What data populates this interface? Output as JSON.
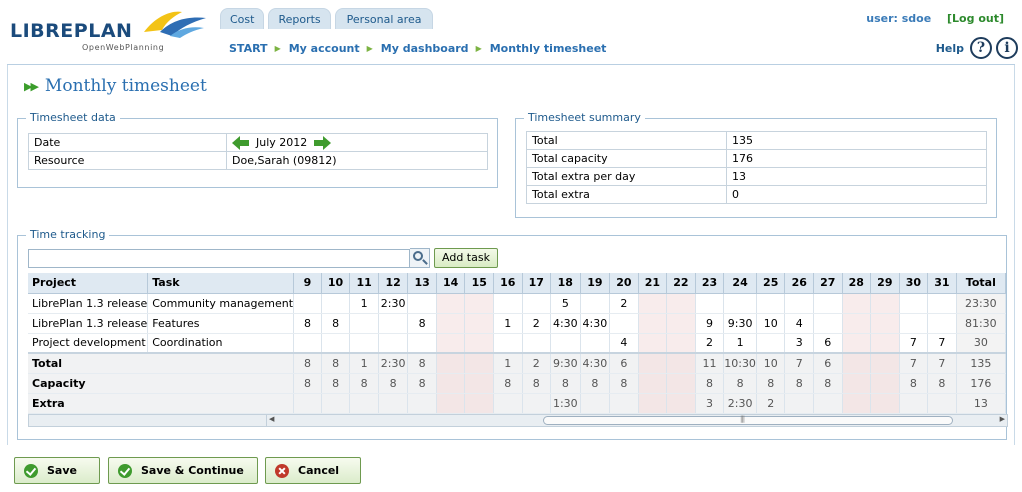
{
  "brand": {
    "name_libre": "LIBRE",
    "name_plan": "PLAN",
    "tagline": "OpenWebPlanning"
  },
  "tabs": [
    {
      "label": "Cost"
    },
    {
      "label": "Reports"
    },
    {
      "label": "Personal area"
    }
  ],
  "user": {
    "label": "user: sdoe",
    "logout": "[Log out]"
  },
  "breadcrumbs": [
    "START",
    "My account",
    "My dashboard",
    "Monthly timesheet"
  ],
  "help": {
    "label": "Help",
    "help_glyph": "?",
    "info_glyph": "i"
  },
  "page": {
    "title": "Monthly timesheet"
  },
  "timesheet_data": {
    "legend": "Timesheet data",
    "date_label": "Date",
    "date_value": "July 2012",
    "resource_label": "Resource",
    "resource_value": "Doe,Sarah (09812)"
  },
  "timesheet_summary": {
    "legend": "Timesheet summary",
    "rows": [
      {
        "label": "Total",
        "value": "135"
      },
      {
        "label": "Total capacity",
        "value": "176"
      },
      {
        "label": "Total extra per day",
        "value": "13"
      },
      {
        "label": "Total extra",
        "value": "0"
      }
    ]
  },
  "time_tracking": {
    "legend": "Time tracking",
    "search_value": "",
    "add_task_label": "Add task",
    "headers": {
      "project": "Project",
      "task": "Task",
      "total": "Total"
    },
    "days": [
      "9",
      "10",
      "11",
      "12",
      "13",
      "14",
      "15",
      "16",
      "17",
      "18",
      "19",
      "20",
      "21",
      "22",
      "23",
      "24",
      "25",
      "26",
      "27",
      "28",
      "29",
      "30",
      "31"
    ],
    "weekend_days": [
      "14",
      "15",
      "21",
      "22",
      "28",
      "29"
    ],
    "rows": [
      {
        "project": "LibrePlan 1.3 release",
        "task": "Community management",
        "cells": [
          "",
          "",
          "1",
          "2:30",
          "",
          "",
          "",
          "",
          "",
          "5",
          "",
          "2",
          "",
          "",
          "",
          "",
          "",
          "",
          "",
          "",
          "",
          "",
          ""
        ],
        "total": "23:30"
      },
      {
        "project": "LibrePlan 1.3 release",
        "task": "Features",
        "cells": [
          "8",
          "8",
          "",
          "",
          "8",
          "",
          "",
          "1",
          "2",
          "4:30",
          "4:30",
          "",
          "",
          "",
          "9",
          "9:30",
          "10",
          "4",
          "",
          "",
          "",
          "",
          ""
        ],
        "total": "81:30"
      },
      {
        "project": "Project development",
        "task": "Coordination",
        "cells": [
          "",
          "",
          "",
          "",
          "",
          "",
          "",
          "",
          "",
          "",
          "",
          "4",
          "",
          "",
          "2",
          "1",
          "",
          "3",
          "6",
          "",
          "",
          "7",
          "7"
        ],
        "total": "30"
      }
    ],
    "summary_rows": [
      {
        "label": "Total",
        "cells": [
          "8",
          "8",
          "1",
          "2:30",
          "8",
          "",
          "",
          "1",
          "2",
          "9:30",
          "4:30",
          "6",
          "",
          "",
          "11",
          "10:30",
          "10",
          "7",
          "6",
          "",
          "",
          "7",
          "7"
        ],
        "total": "135"
      },
      {
        "label": "Capacity",
        "cells": [
          "8",
          "8",
          "8",
          "8",
          "8",
          "",
          "",
          "8",
          "8",
          "8",
          "8",
          "8",
          "",
          "",
          "8",
          "8",
          "8",
          "8",
          "8",
          "",
          "",
          "8",
          "8"
        ],
        "total": "176"
      },
      {
        "label": "Extra",
        "cells": [
          "",
          "",
          "",
          "",
          "",
          "",
          "",
          "",
          "",
          "1:30",
          "",
          "",
          "",
          "",
          "3",
          "2:30",
          "2",
          "",
          "",
          "",
          "",
          "",
          ""
        ],
        "total": "13"
      }
    ]
  },
  "buttons": {
    "save": "Save",
    "save_continue": "Save & Continue",
    "cancel": "Cancel"
  },
  "colors": {
    "brand_blue": "#1b4b7c",
    "link_blue": "#2a6fb0",
    "green": "#3f9b2e",
    "weekend": "#f8ecec"
  }
}
